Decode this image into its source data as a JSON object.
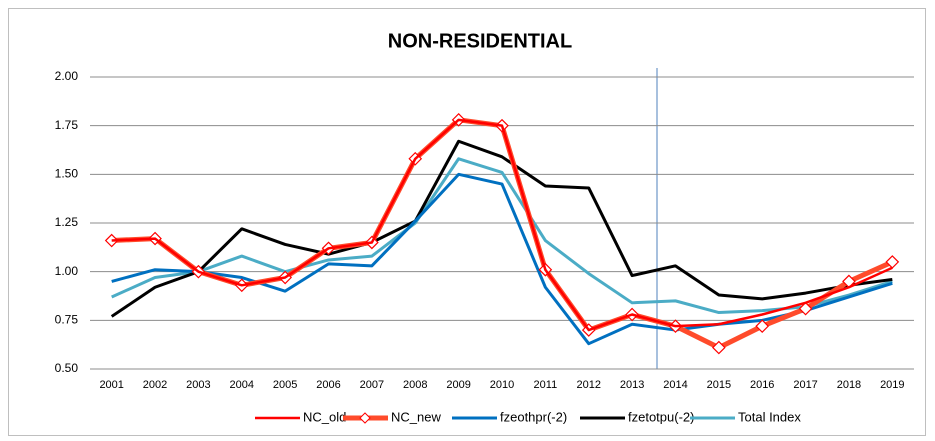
{
  "chart_data": {
    "type": "line",
    "title": "NON-RESIDENTIAL",
    "categories": [
      "2001",
      "2002",
      "2003",
      "2004",
      "2005",
      "2006",
      "2007",
      "2008",
      "2009",
      "2010",
      "2011",
      "2012",
      "2013",
      "2014",
      "2015",
      "2016",
      "2017",
      "2018",
      "2019"
    ],
    "series": [
      {
        "name": "NC_old",
        "color": "#ff0000",
        "values": [
          1.16,
          1.17,
          1.0,
          0.93,
          0.97,
          1.12,
          1.15,
          1.58,
          1.78,
          1.75,
          1.01,
          0.7,
          0.78,
          0.72,
          0.73,
          0.78,
          0.84,
          0.92,
          1.02
        ]
      },
      {
        "name": "NC_new",
        "color": "#ff4b2b",
        "marker": "diamond",
        "values": [
          1.16,
          1.17,
          1.0,
          0.93,
          0.97,
          1.12,
          1.15,
          1.58,
          1.78,
          1.75,
          1.01,
          0.7,
          0.78,
          0.72,
          0.61,
          0.72,
          0.81,
          0.95,
          1.05
        ]
      },
      {
        "name": "fzeothpr(-2)",
        "color": "#0070c0",
        "values": [
          0.95,
          1.01,
          1.0,
          0.97,
          0.9,
          1.04,
          1.03,
          1.26,
          1.5,
          1.45,
          0.92,
          0.63,
          0.73,
          0.7,
          0.73,
          0.75,
          0.8,
          0.87,
          0.94
        ]
      },
      {
        "name": "fzetotpu(-2)",
        "color": "#000000",
        "values": [
          0.77,
          0.92,
          1.0,
          1.22,
          1.14,
          1.09,
          1.15,
          1.26,
          1.67,
          1.59,
          1.44,
          1.43,
          0.98,
          1.03,
          0.88,
          0.86,
          0.89,
          0.93,
          0.96
        ]
      },
      {
        "name": "Total Index",
        "color": "#4bacc6",
        "values": [
          0.87,
          0.97,
          1.0,
          1.08,
          1.0,
          1.06,
          1.08,
          1.25,
          1.58,
          1.51,
          1.16,
          0.99,
          0.84,
          0.85,
          0.79,
          0.8,
          0.82,
          0.88,
          0.95
        ]
      }
    ],
    "ylim": [
      0.5,
      2.0
    ],
    "yticks": [
      {
        "value": 0.5,
        "label": "0.50"
      },
      {
        "value": 0.75,
        "label": "0.75"
      },
      {
        "value": 1.0,
        "label": "1.00"
      },
      {
        "value": 1.25,
        "label": "1.25"
      },
      {
        "value": 1.5,
        "label": "1.50"
      },
      {
        "value": 1.75,
        "label": "1.75"
      },
      {
        "value": 2.0,
        "label": "2.00"
      }
    ],
    "grid": true,
    "legend": "bottom"
  }
}
